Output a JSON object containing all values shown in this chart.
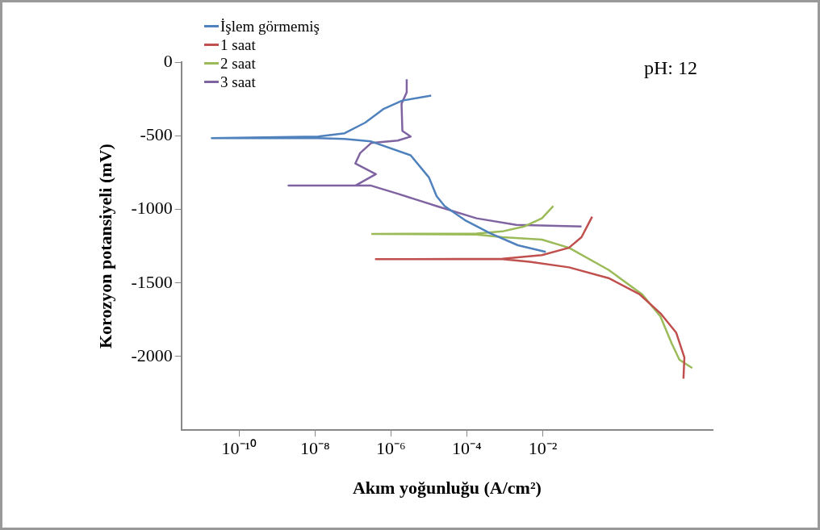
{
  "chart_data": {
    "type": "line",
    "xlabel": "Akım yoğunluğu (A/cm²)",
    "ylabel": "Korozyon potansiyeli (mV)",
    "annotations": [
      "pH: 12"
    ],
    "log": "x",
    "legend": "top left",
    "grid": false,
    "xlim": [
      3e-12,
      300
    ],
    "xticks": [
      {
        "value": 1e-10,
        "label": "10⁻¹⁰"
      },
      {
        "value": 1e-08,
        "label": "10⁻⁸"
      },
      {
        "value": 1e-06,
        "label": "10⁻⁶"
      },
      {
        "value": 0.0001,
        "label": "10⁻⁴"
      },
      {
        "value": 0.01,
        "label": "10⁻²"
      }
    ],
    "ylim": [
      -2500,
      0
    ],
    "yticks": [
      0,
      -500,
      -1000,
      -1500,
      -2000
    ],
    "series": [
      {
        "name": "İşlem görmemiş",
        "color": "#4f81bd",
        "x": [
          0.012,
          0.0022,
          0.0004,
          9.5e-05,
          2.6e-05,
          1.6e-05,
          1e-05,
          3.3e-06,
          3e-07,
          6e-08,
          1.2e-08,
          1.9e-11,
          1.2e-08,
          6e-08,
          2.1e-07,
          6.5e-07,
          2e-06,
          1.15e-05
        ],
        "values": [
          -1289,
          -1244,
          -1161,
          -1078,
          -978,
          -911,
          -783,
          -633,
          -539,
          -522,
          -517,
          -517,
          -506,
          -483,
          -411,
          -317,
          -261,
          -228
        ]
      },
      {
        "name": "1 saat",
        "color": "#c0504d",
        "x": [
          51,
          54,
          33,
          12.6,
          3.6,
          0.54,
          0.049,
          0.0045,
          0.00087,
          4e-07,
          0.00087,
          0.0095,
          0.049,
          0.105,
          0.2
        ],
        "values": [
          -2150,
          -2006,
          -1839,
          -1706,
          -1578,
          -1467,
          -1394,
          -1356,
          -1339,
          -1339,
          -1336,
          -1311,
          -1261,
          -1189,
          -1050
        ]
      },
      {
        "name": "2 saat",
        "color": "#9bbb59",
        "x": [
          87,
          40,
          25,
          12.6,
          4.2,
          0.54,
          0.049,
          0.0095,
          0.00087,
          0.00018,
          3.2e-07,
          0.00018,
          0.00087,
          0.0032,
          0.0095,
          0.019
        ],
        "values": [
          -2078,
          -2022,
          -1911,
          -1728,
          -1578,
          -1411,
          -1261,
          -1206,
          -1189,
          -1172,
          -1167,
          -1165,
          -1150,
          -1117,
          -1061,
          -978
        ]
      },
      {
        "name": "3 saat",
        "color": "#8064a2",
        "x": [
          0.105,
          0.002,
          0.00018,
          1.6e-05,
          1.5e-06,
          3e-07,
          1.2e-08,
          2e-09,
          1.15e-07,
          4e-07,
          1.15e-07,
          1.55e-07,
          3e-07,
          1.5e-06,
          3.3e-06,
          2e-06,
          1.9e-06,
          2.6e-06,
          2.6e-06
        ],
        "values": [
          -1117,
          -1106,
          -1061,
          -978,
          -894,
          -839,
          -839,
          -839,
          -839,
          -761,
          -689,
          -617,
          -550,
          -533,
          -506,
          -467,
          -283,
          -206,
          -117
        ]
      }
    ]
  }
}
